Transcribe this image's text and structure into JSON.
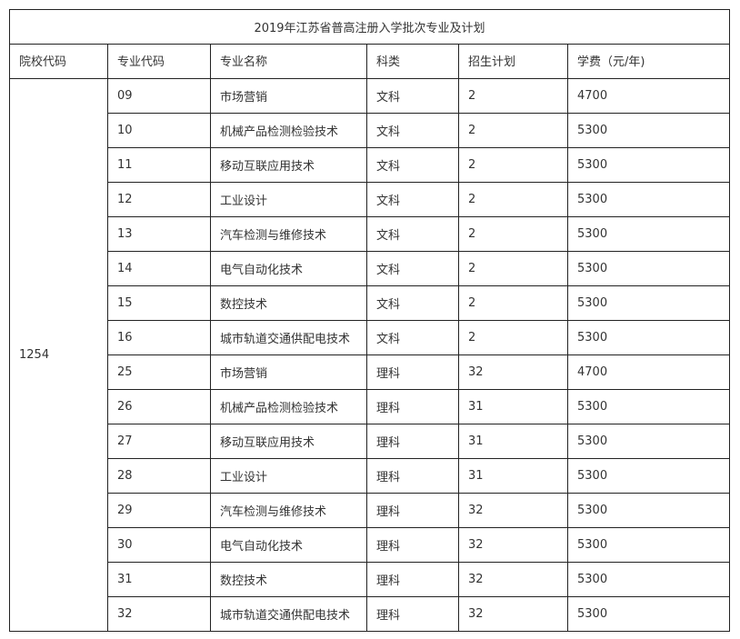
{
  "title": "2019年江苏省普高注册入学批次专业及计划",
  "headers": [
    "院校代码",
    "专业代码",
    "专业名称",
    "科类",
    "招生计划",
    "学费（元/年)"
  ],
  "school_code": "1254",
  "rows": [
    [
      "09",
      "市场营销",
      "文科",
      "2",
      "4700"
    ],
    [
      "10",
      "机械产品检测检验技术",
      "文科",
      "2",
      "5300"
    ],
    [
      "11",
      "移动互联应用技术",
      "文科",
      "2",
      "5300"
    ],
    [
      "12",
      "工业设计",
      "文科",
      "2",
      "5300"
    ],
    [
      "13",
      "汽车检测与维修技术",
      "文科",
      "2",
      "5300"
    ],
    [
      "14",
      "电气自动化技术",
      "文科",
      "2",
      "5300"
    ],
    [
      "15",
      "数控技术",
      "文科",
      "2",
      "5300"
    ],
    [
      "16",
      "城市轨道交通供配电技术",
      "文科",
      "2",
      "5300"
    ],
    [
      "25",
      "市场营销",
      "理科",
      "32",
      "4700"
    ],
    [
      "26",
      "机械产品检测检验技术",
      "理科",
      "31",
      "5300"
    ],
    [
      "27",
      "移动互联应用技术",
      "理科",
      "31",
      "5300"
    ],
    [
      "28",
      "工业设计",
      "理科",
      "31",
      "5300"
    ],
    [
      "29",
      "汽车检测与维修技术",
      "理科",
      "32",
      "5300"
    ],
    [
      "30",
      "电气自动化技术",
      "理科",
      "32",
      "5300"
    ],
    [
      "31",
      "数控技术",
      "理科",
      "32",
      "5300"
    ],
    [
      "32",
      "城市轨道交通供配电技术",
      "理科",
      "32",
      "5300"
    ]
  ]
}
